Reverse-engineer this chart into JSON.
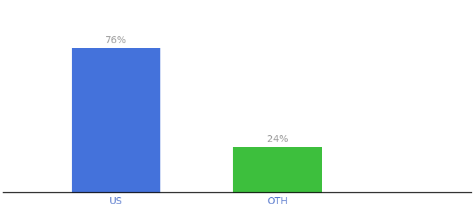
{
  "categories": [
    "US",
    "OTH"
  ],
  "values": [
    76,
    24
  ],
  "bar_colors": [
    "#4472db",
    "#3dbf3d"
  ],
  "label_texts": [
    "76%",
    "24%"
  ],
  "label_color": "#999999",
  "ylim": [
    0,
    100
  ],
  "background_color": "#ffffff",
  "bar_width": 0.55,
  "label_fontsize": 10,
  "tick_fontsize": 10,
  "tick_color": "#5577cc"
}
